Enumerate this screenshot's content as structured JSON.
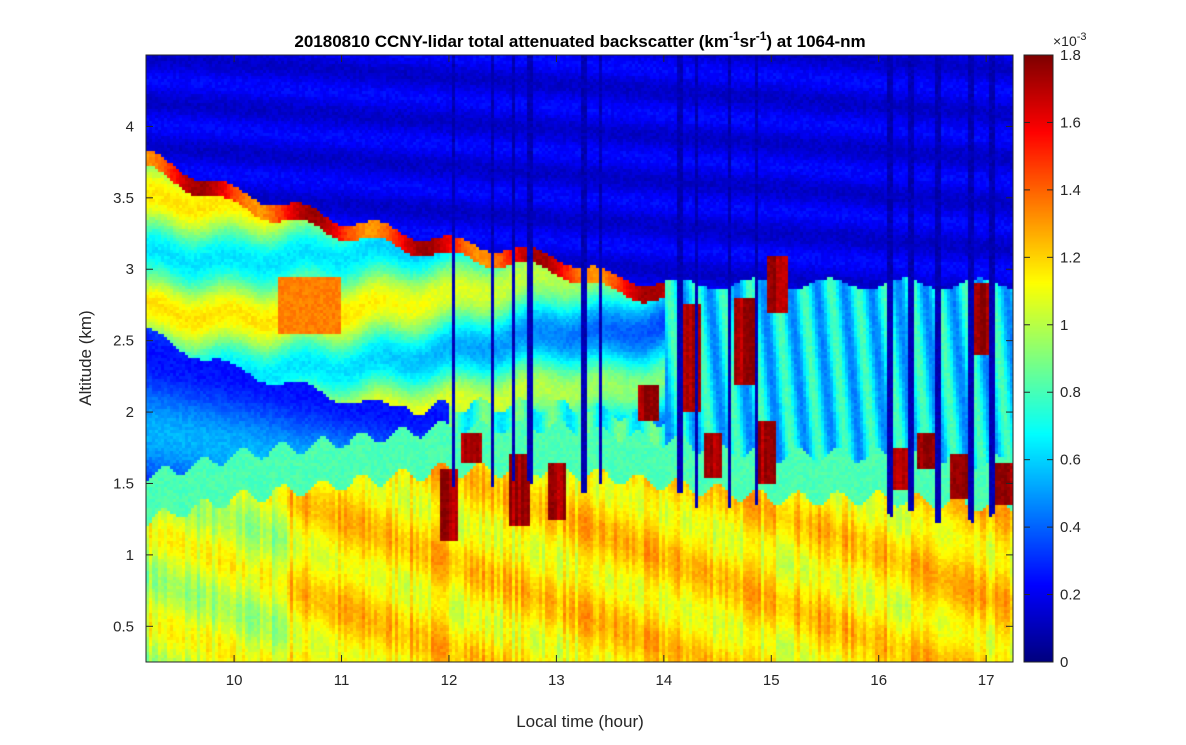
{
  "chart_data": {
    "type": "heatmap",
    "title": {
      "prefix": "20180810 CCNY-lidar total attenuated backscatter (km",
      "sup1": "-1",
      "mid": "sr",
      "sup2": "-1",
      "suffix": ") at 1064-nm"
    },
    "xlabel": "Local time (hour)",
    "ylabel": "Altitude (km)",
    "xlim": [
      9.18,
      17.25
    ],
    "ylim": [
      0.25,
      4.5
    ],
    "xticks": [
      10,
      11,
      12,
      13,
      14,
      15,
      16,
      17
    ],
    "yticks": [
      0.5,
      1,
      1.5,
      2,
      2.5,
      3,
      3.5,
      4
    ],
    "colorbar": {
      "colormap": "jet",
      "clim": [
        0,
        0.0018
      ],
      "multiplier_base": "×10",
      "multiplier_exponent": "-3",
      "ticks": [
        0,
        0.2,
        0.4,
        0.6,
        0.8,
        1,
        1.2,
        1.4,
        1.6,
        1.8
      ]
    },
    "features": {
      "aerosol_layer_top_km": [
        {
          "t": 9.2,
          "z": 3.75
        },
        {
          "t": 10.0,
          "z": 3.5
        },
        {
          "t": 11.0,
          "z": 3.3
        },
        {
          "t": 12.0,
          "z": 3.15
        },
        {
          "t": 13.0,
          "z": 3.05
        },
        {
          "t": 13.5,
          "z": 2.9
        },
        {
          "t": 14.0,
          "z": 2.85
        }
      ],
      "elevated_plume_max_km": {
        "t": 10.7,
        "z": 2.75
      },
      "boundary_layer_top_km": [
        {
          "t": 9.2,
          "z": 1.35
        },
        {
          "t": 10.0,
          "z": 1.5
        },
        {
          "t": 11.0,
          "z": 1.6
        },
        {
          "t": 12.0,
          "z": 1.7
        },
        {
          "t": 13.0,
          "z": 1.7
        },
        {
          "t": 14.0,
          "z": 1.6
        },
        {
          "t": 15.0,
          "z": 1.5
        },
        {
          "t": 16.0,
          "z": 1.5
        },
        {
          "t": 17.0,
          "z": 1.45
        }
      ],
      "cloud_cells": [
        {
          "t": 12.0,
          "z_bottom": 1.1,
          "z_top": 1.6
        },
        {
          "t": 12.2,
          "z_bottom": 1.65,
          "z_top": 1.85
        },
        {
          "t": 12.65,
          "z_bottom": 1.2,
          "z_top": 1.7
        },
        {
          "t": 13.0,
          "z_bottom": 1.25,
          "z_top": 1.65
        },
        {
          "t": 13.85,
          "z_bottom": 1.95,
          "z_top": 2.2
        },
        {
          "t": 14.25,
          "z_bottom": 2.0,
          "z_top": 2.75
        },
        {
          "t": 14.45,
          "z_bottom": 1.55,
          "z_top": 1.85
        },
        {
          "t": 14.75,
          "z_bottom": 2.2,
          "z_top": 2.8
        },
        {
          "t": 14.95,
          "z_bottom": 1.5,
          "z_top": 1.95
        },
        {
          "t": 15.05,
          "z_bottom": 2.7,
          "z_top": 3.1
        },
        {
          "t": 16.2,
          "z_bottom": 1.45,
          "z_top": 1.75
        },
        {
          "t": 16.45,
          "z_bottom": 1.6,
          "z_top": 1.85
        },
        {
          "t": 16.75,
          "z_bottom": 1.4,
          "z_top": 1.7
        },
        {
          "t": 16.95,
          "z_bottom": 2.4,
          "z_top": 2.9
        },
        {
          "t": 17.15,
          "z_bottom": 1.35,
          "z_top": 1.65
        }
      ]
    }
  }
}
